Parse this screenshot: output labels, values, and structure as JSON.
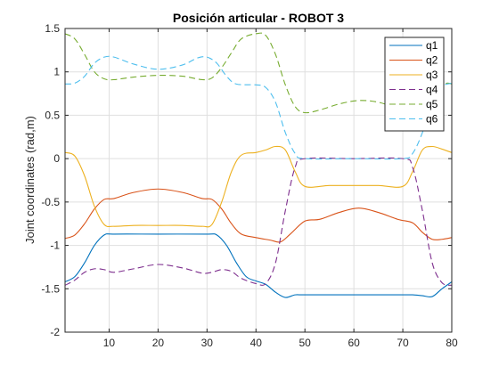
{
  "chart_data": {
    "type": "line",
    "title": "Posición articular - ROBOT 3",
    "xlabel": "",
    "ylabel": "Joint coordinates (rad,m)",
    "xlim": [
      1,
      80
    ],
    "ylim": [
      -2,
      1.5
    ],
    "xticks": [
      10,
      20,
      30,
      40,
      50,
      60,
      70,
      80
    ],
    "yticks": [
      -2,
      -1.5,
      -1,
      -0.5,
      0,
      0.5,
      1,
      1.5
    ],
    "xtick_labels": [
      "10",
      "20",
      "30",
      "40",
      "50",
      "60",
      "70",
      "80"
    ],
    "ytick_labels": [
      "-2",
      "-1.5",
      "-1",
      "-0.5",
      "0",
      "0.5",
      "1",
      "1.5"
    ],
    "grid": true,
    "legend_position": "top-right",
    "series": [
      {
        "name": "q1",
        "color": "#0072BD",
        "dash": "solid",
        "points": [
          [
            1,
            -1.42
          ],
          [
            3,
            -1.36
          ],
          [
            5,
            -1.2
          ],
          [
            7,
            -1.0
          ],
          [
            9,
            -0.88
          ],
          [
            11,
            -0.87
          ],
          [
            20,
            -0.87
          ],
          [
            30,
            -0.87
          ],
          [
            32,
            -0.88
          ],
          [
            34,
            -1.0
          ],
          [
            36,
            -1.2
          ],
          [
            38,
            -1.36
          ],
          [
            40,
            -1.41
          ],
          [
            42,
            -1.45
          ],
          [
            44,
            -1.54
          ],
          [
            46,
            -1.6
          ],
          [
            48,
            -1.57
          ],
          [
            50,
            -1.57
          ],
          [
            60,
            -1.57
          ],
          [
            70,
            -1.57
          ],
          [
            72,
            -1.57
          ],
          [
            74,
            -1.58
          ],
          [
            76,
            -1.59
          ],
          [
            78,
            -1.5
          ],
          [
            80,
            -1.42
          ]
        ]
      },
      {
        "name": "q2",
        "color": "#D95319",
        "dash": "solid",
        "points": [
          [
            1,
            -0.92
          ],
          [
            3,
            -0.88
          ],
          [
            5,
            -0.75
          ],
          [
            7,
            -0.58
          ],
          [
            9,
            -0.47
          ],
          [
            11,
            -0.46
          ],
          [
            15,
            -0.39
          ],
          [
            20,
            -0.35
          ],
          [
            25,
            -0.39
          ],
          [
            29,
            -0.46
          ],
          [
            31,
            -0.47
          ],
          [
            33,
            -0.58
          ],
          [
            35,
            -0.75
          ],
          [
            37,
            -0.87
          ],
          [
            40,
            -0.91
          ],
          [
            43,
            -0.94
          ],
          [
            45,
            -0.96
          ],
          [
            47,
            -0.87
          ],
          [
            50,
            -0.72
          ],
          [
            53,
            -0.7
          ],
          [
            57,
            -0.62
          ],
          [
            61,
            -0.57
          ],
          [
            65,
            -0.62
          ],
          [
            69,
            -0.7
          ],
          [
            72,
            -0.74
          ],
          [
            74,
            -0.85
          ],
          [
            76,
            -0.93
          ],
          [
            78,
            -0.93
          ],
          [
            80,
            -0.91
          ]
        ]
      },
      {
        "name": "q3",
        "color": "#EDB120",
        "dash": "solid",
        "points": [
          [
            1,
            0.07
          ],
          [
            3,
            0.03
          ],
          [
            5,
            -0.2
          ],
          [
            7,
            -0.55
          ],
          [
            9,
            -0.76
          ],
          [
            11,
            -0.78
          ],
          [
            15,
            -0.77
          ],
          [
            20,
            -0.77
          ],
          [
            25,
            -0.77
          ],
          [
            29,
            -0.78
          ],
          [
            31,
            -0.76
          ],
          [
            33,
            -0.5
          ],
          [
            35,
            -0.15
          ],
          [
            37,
            0.04
          ],
          [
            40,
            0.07
          ],
          [
            42,
            0.1
          ],
          [
            44,
            0.14
          ],
          [
            46,
            0.1
          ],
          [
            48,
            -0.15
          ],
          [
            50,
            -0.32
          ],
          [
            55,
            -0.31
          ],
          [
            60,
            -0.31
          ],
          [
            65,
            -0.31
          ],
          [
            70,
            -0.32
          ],
          [
            72,
            -0.15
          ],
          [
            74,
            0.1
          ],
          [
            76,
            0.14
          ],
          [
            78,
            0.11
          ],
          [
            80,
            0.07
          ]
        ]
      },
      {
        "name": "q4",
        "color": "#7E2F8E",
        "dash": "dashed",
        "points": [
          [
            1,
            -1.46
          ],
          [
            3,
            -1.4
          ],
          [
            5,
            -1.31
          ],
          [
            7,
            -1.27
          ],
          [
            9,
            -1.28
          ],
          [
            11,
            -1.31
          ],
          [
            15,
            -1.27
          ],
          [
            20,
            -1.22
          ],
          [
            25,
            -1.26
          ],
          [
            29,
            -1.32
          ],
          [
            31,
            -1.31
          ],
          [
            33,
            -1.28
          ],
          [
            35,
            -1.3
          ],
          [
            37,
            -1.38
          ],
          [
            40,
            -1.44
          ],
          [
            42,
            -1.44
          ],
          [
            44,
            -1.2
          ],
          [
            46,
            -0.6
          ],
          [
            48,
            -0.1
          ],
          [
            50,
            0.0
          ],
          [
            60,
            0.0
          ],
          [
            70,
            0.0
          ],
          [
            72,
            -0.1
          ],
          [
            74,
            -0.6
          ],
          [
            76,
            -1.2
          ],
          [
            78,
            -1.43
          ],
          [
            80,
            -1.46
          ]
        ]
      },
      {
        "name": "q5",
        "color": "#77AC30",
        "dash": "dashed",
        "points": [
          [
            1,
            1.44
          ],
          [
            3,
            1.38
          ],
          [
            5,
            1.2
          ],
          [
            7,
            1.0
          ],
          [
            9,
            0.92
          ],
          [
            11,
            0.91
          ],
          [
            15,
            0.94
          ],
          [
            20,
            0.96
          ],
          [
            25,
            0.95
          ],
          [
            29,
            0.91
          ],
          [
            31,
            0.93
          ],
          [
            33,
            1.05
          ],
          [
            35,
            1.22
          ],
          [
            37,
            1.38
          ],
          [
            40,
            1.44
          ],
          [
            42,
            1.42
          ],
          [
            44,
            1.2
          ],
          [
            46,
            0.85
          ],
          [
            48,
            0.6
          ],
          [
            50,
            0.53
          ],
          [
            53,
            0.56
          ],
          [
            57,
            0.63
          ],
          [
            61,
            0.67
          ],
          [
            65,
            0.65
          ],
          [
            69,
            0.58
          ],
          [
            71,
            0.56
          ],
          [
            73,
            0.58
          ],
          [
            75,
            0.72
          ],
          [
            77,
            0.84
          ],
          [
            79,
            0.87
          ],
          [
            80,
            0.86
          ]
        ]
      },
      {
        "name": "q6",
        "color": "#4DBEEE",
        "dash": "dashed",
        "points": [
          [
            1,
            0.86
          ],
          [
            3,
            0.87
          ],
          [
            5,
            0.95
          ],
          [
            7,
            1.1
          ],
          [
            9,
            1.17
          ],
          [
            11,
            1.17
          ],
          [
            15,
            1.09
          ],
          [
            20,
            1.03
          ],
          [
            25,
            1.08
          ],
          [
            28,
            1.16
          ],
          [
            30,
            1.17
          ],
          [
            32,
            1.1
          ],
          [
            34,
            0.95
          ],
          [
            36,
            0.86
          ],
          [
            40,
            0.85
          ],
          [
            42,
            0.82
          ],
          [
            44,
            0.65
          ],
          [
            46,
            0.3
          ],
          [
            48,
            0.06
          ],
          [
            50,
            0.0
          ],
          [
            60,
            0.0
          ],
          [
            70,
            0.0
          ],
          [
            72,
            0.06
          ],
          [
            74,
            0.3
          ],
          [
            76,
            0.65
          ],
          [
            78,
            0.83
          ],
          [
            80,
            0.87
          ]
        ]
      }
    ]
  }
}
